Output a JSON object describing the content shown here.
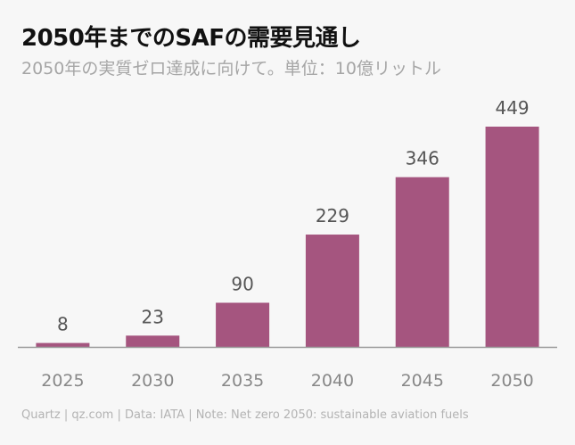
{
  "chart_data": {
    "type": "bar",
    "title": "2050年までのSAFの需要見通し",
    "subtitle": "2050年の実質ゼロ達成に向けて。単位：10億リットル",
    "categories": [
      "2025",
      "2030",
      "2035",
      "2040",
      "2045",
      "2050"
    ],
    "values": [
      8,
      23,
      90,
      229,
      346,
      449
    ],
    "xlabel": "",
    "ylabel": "",
    "ylim": [
      0,
      449
    ],
    "grid": false,
    "bar_color": "#a5557f",
    "axis_color": "#999999",
    "label_color": "#555555",
    "tick_color": "#888888"
  },
  "footer": {
    "text": "Quartz | qz.com | Data: IATA | Note: Net zero 2050: sustainable aviation fuels"
  }
}
